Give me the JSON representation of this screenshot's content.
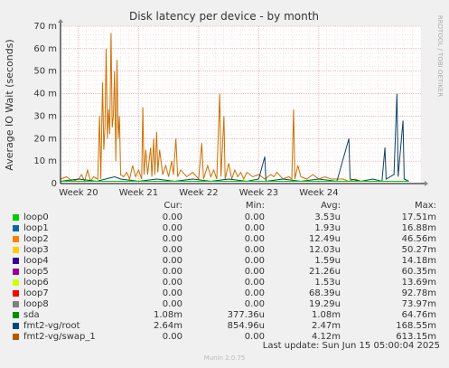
{
  "chart_data": {
    "type": "line",
    "title": "Disk latency per device - by month",
    "ylabel": "Average IO Wait (seconds)",
    "side_label": "RRDTOOL / TOBI OETIKER",
    "ylim": [
      0,
      0.07
    ],
    "y_ticks": [
      {
        "value": 0,
        "label": "0"
      },
      {
        "value": 0.01,
        "label": "10 m"
      },
      {
        "value": 0.02,
        "label": "20 m"
      },
      {
        "value": 0.03,
        "label": "30 m"
      },
      {
        "value": 0.04,
        "label": "40 m"
      },
      {
        "value": 0.05,
        "label": "50 m"
      },
      {
        "value": 0.06,
        "label": "60 m"
      },
      {
        "value": 0.07,
        "label": "70 m"
      }
    ],
    "x_range": [
      0,
      6.0
    ],
    "x_ticks": [
      {
        "value": 0.3,
        "label": "Week 20"
      },
      {
        "value": 1.3,
        "label": "Week 21"
      },
      {
        "value": 2.3,
        "label": "Week 22"
      },
      {
        "value": 3.3,
        "label": "Week 23"
      },
      {
        "value": 4.3,
        "label": "Week 24"
      }
    ],
    "grid": true,
    "series": [
      {
        "name": "fmt2-vg/swap_1",
        "color": "#cc7000",
        "points": [
          [
            0.0,
            0.002
          ],
          [
            0.1,
            0.003
          ],
          [
            0.2,
            0.001
          ],
          [
            0.3,
            0.002
          ],
          [
            0.35,
            0.004
          ],
          [
            0.4,
            0.001
          ],
          [
            0.45,
            0.006
          ],
          [
            0.5,
            0.001
          ],
          [
            0.55,
            0.003
          ],
          [
            0.62,
            0.002
          ],
          [
            0.65,
            0.03
          ],
          [
            0.67,
            0.002
          ],
          [
            0.7,
            0.045
          ],
          [
            0.72,
            0.015
          ],
          [
            0.74,
            0.025
          ],
          [
            0.76,
            0.06
          ],
          [
            0.78,
            0.02
          ],
          [
            0.8,
            0.033
          ],
          [
            0.82,
            0.022
          ],
          [
            0.84,
            0.067
          ],
          [
            0.86,
            0.025
          ],
          [
            0.88,
            0.03
          ],
          [
            0.9,
            0.05
          ],
          [
            0.92,
            0.01
          ],
          [
            0.94,
            0.055
          ],
          [
            0.96,
            0.02
          ],
          [
            0.98,
            0.03
          ],
          [
            1.0,
            0.004
          ],
          [
            1.05,
            0.003
          ],
          [
            1.1,
            0.005
          ],
          [
            1.15,
            0.002
          ],
          [
            1.2,
            0.008
          ],
          [
            1.25,
            0.003
          ],
          [
            1.3,
            0.006
          ],
          [
            1.35,
            0.002
          ],
          [
            1.37,
            0.034
          ],
          [
            1.39,
            0.004
          ],
          [
            1.42,
            0.015
          ],
          [
            1.45,
            0.004
          ],
          [
            1.5,
            0.016
          ],
          [
            1.52,
            0.003
          ],
          [
            1.55,
            0.02
          ],
          [
            1.57,
            0.004
          ],
          [
            1.6,
            0.023
          ],
          [
            1.62,
            0.005
          ],
          [
            1.65,
            0.015
          ],
          [
            1.7,
            0.004
          ],
          [
            1.75,
            0.008
          ],
          [
            1.8,
            0.003
          ],
          [
            1.85,
            0.01
          ],
          [
            1.88,
            0.004
          ],
          [
            1.92,
            0.02
          ],
          [
            1.95,
            0.003
          ],
          [
            2.0,
            0.006
          ],
          [
            2.1,
            0.003
          ],
          [
            2.2,
            0.005
          ],
          [
            2.3,
            0.002
          ],
          [
            2.35,
            0.018
          ],
          [
            2.38,
            0.002
          ],
          [
            2.45,
            0.008
          ],
          [
            2.5,
            0.003
          ],
          [
            2.55,
            0.006
          ],
          [
            2.6,
            0.002
          ],
          [
            2.65,
            0.04
          ],
          [
            2.67,
            0.003
          ],
          [
            2.72,
            0.03
          ],
          [
            2.74,
            0.002
          ],
          [
            2.8,
            0.009
          ],
          [
            2.85,
            0.002
          ],
          [
            2.9,
            0.006
          ],
          [
            2.95,
            0.003
          ],
          [
            3.0,
            0.005
          ],
          [
            3.05,
            0.002
          ],
          [
            3.1,
            0.005
          ],
          [
            3.2,
            0.003
          ],
          [
            3.3,
            0.004
          ],
          [
            3.4,
            0.002
          ],
          [
            3.5,
            0.004
          ],
          [
            3.55,
            0.003
          ],
          [
            3.6,
            0.005
          ],
          [
            3.7,
            0.002
          ],
          [
            3.8,
            0.003
          ],
          [
            3.85,
            0.002
          ],
          [
            3.88,
            0.033
          ],
          [
            3.9,
            0.002
          ],
          [
            3.95,
            0.008
          ],
          [
            4.0,
            0.003
          ],
          [
            4.1,
            0.002
          ],
          [
            4.2,
            0.004
          ],
          [
            4.3,
            0.002
          ],
          [
            4.4,
            0.003
          ],
          [
            4.5,
            0.002
          ],
          [
            4.6,
            0.002
          ],
          [
            4.7,
            0.002
          ],
          [
            4.8,
            0.001
          ],
          [
            4.9,
            0.002
          ],
          [
            5.0,
            0.001
          ]
        ]
      },
      {
        "name": "fmt2-vg/root",
        "color": "#0e4266",
        "points": [
          [
            0.0,
            0.001
          ],
          [
            0.3,
            0.002
          ],
          [
            0.6,
            0.001
          ],
          [
            0.9,
            0.003
          ],
          [
            1.0,
            0.002
          ],
          [
            1.3,
            0.001
          ],
          [
            1.6,
            0.002
          ],
          [
            1.9,
            0.001
          ],
          [
            2.2,
            0.002
          ],
          [
            2.5,
            0.001
          ],
          [
            2.8,
            0.002
          ],
          [
            3.1,
            0.001
          ],
          [
            3.3,
            0.002
          ],
          [
            3.4,
            0.012
          ],
          [
            3.42,
            0.001
          ],
          [
            3.7,
            0.002
          ],
          [
            4.0,
            0.001
          ],
          [
            4.3,
            0.002
          ],
          [
            4.6,
            0.001
          ],
          [
            4.8,
            0.02
          ],
          [
            4.82,
            0.002
          ],
          [
            5.0,
            0.001
          ],
          [
            5.2,
            0.002
          ],
          [
            5.35,
            0.001
          ],
          [
            5.4,
            0.016
          ],
          [
            5.42,
            0.002
          ],
          [
            5.55,
            0.004
          ],
          [
            5.6,
            0.04
          ],
          [
            5.62,
            0.003
          ],
          [
            5.7,
            0.028
          ],
          [
            5.72,
            0.002
          ],
          [
            5.8,
            0.001
          ]
        ]
      },
      {
        "name": "sda",
        "color": "#00cc00",
        "points": [
          [
            0.0,
            0.001
          ],
          [
            0.5,
            0.001
          ],
          [
            1.0,
            0.001
          ],
          [
            1.5,
            0.001
          ],
          [
            2.0,
            0.001
          ],
          [
            2.5,
            0.001
          ],
          [
            3.0,
            0.001
          ],
          [
            3.5,
            0.001
          ],
          [
            4.0,
            0.001
          ],
          [
            4.5,
            0.001
          ],
          [
            5.0,
            0.001
          ],
          [
            5.5,
            0.001
          ],
          [
            5.8,
            0.001
          ]
        ]
      }
    ]
  },
  "legend": {
    "headers": {
      "cur": "Cur:",
      "min": "Min:",
      "avg": "Avg:",
      "max": "Max:"
    },
    "rows": [
      {
        "name": "loop0",
        "color": "#00cc00",
        "cur": "0.00",
        "min": "0.00",
        "avg": "3.53u",
        "max": "17.51m"
      },
      {
        "name": "loop1",
        "color": "#0066b3",
        "cur": "0.00",
        "min": "0.00",
        "avg": "1.93u",
        "max": "16.88m"
      },
      {
        "name": "loop2",
        "color": "#ff8000",
        "cur": "0.00",
        "min": "0.00",
        "avg": "12.49u",
        "max": "46.56m"
      },
      {
        "name": "loop3",
        "color": "#ffcc00",
        "cur": "0.00",
        "min": "0.00",
        "avg": "12.03u",
        "max": "50.27m"
      },
      {
        "name": "loop4",
        "color": "#330099",
        "cur": "0.00",
        "min": "0.00",
        "avg": "1.59u",
        "max": "14.18m"
      },
      {
        "name": "loop5",
        "color": "#990099",
        "cur": "0.00",
        "min": "0.00",
        "avg": "21.26u",
        "max": "60.35m"
      },
      {
        "name": "loop6",
        "color": "#ccff00",
        "cur": "0.00",
        "min": "0.00",
        "avg": "1.53u",
        "max": "13.69m"
      },
      {
        "name": "loop7",
        "color": "#ff0000",
        "cur": "0.00",
        "min": "0.00",
        "avg": "68.39u",
        "max": "92.78m"
      },
      {
        "name": "loop8",
        "color": "#808080",
        "cur": "0.00",
        "min": "0.00",
        "avg": "19.29u",
        "max": "73.97m"
      },
      {
        "name": "sda",
        "color": "#008f00",
        "cur": "1.08m",
        "min": "377.36u",
        "avg": "1.08m",
        "max": "64.76m"
      },
      {
        "name": "fmt2-vg/root",
        "color": "#00487d",
        "cur": "2.64m",
        "min": "854.96u",
        "avg": "2.47m",
        "max": "168.55m"
      },
      {
        "name": "fmt2-vg/swap_1",
        "color": "#b35a00",
        "cur": "0.00",
        "min": "0.00",
        "avg": "4.12m",
        "max": "613.15m"
      }
    ]
  },
  "last_update": "Last update:  Sun Jun 15 05:00:04 2025",
  "footer": "Munin 2.0.75"
}
